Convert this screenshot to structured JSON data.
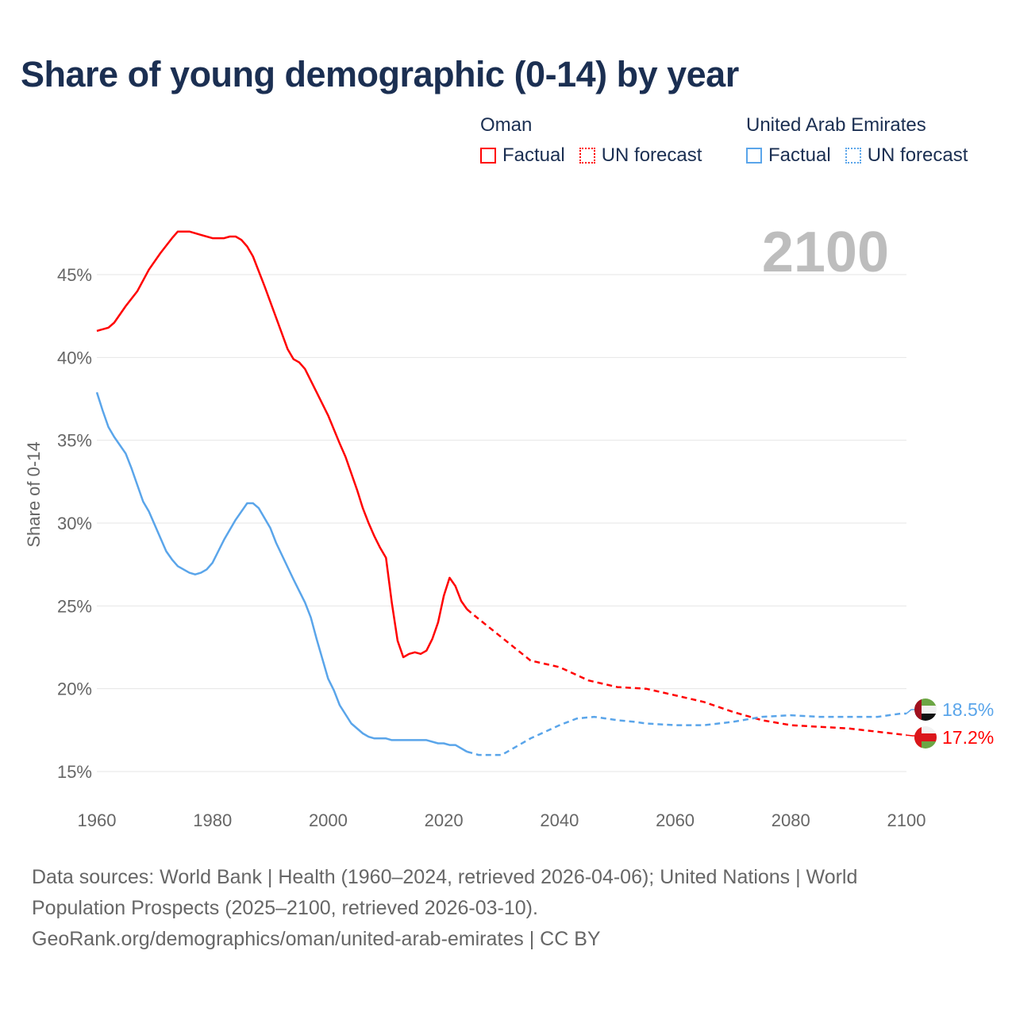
{
  "colors": {
    "oman": "#ff0000",
    "uae": "#5aa5ea",
    "grid": "#e6e6e6",
    "text": "#666666",
    "year": "#bdbdbd"
  },
  "legend": {
    "groups": [
      {
        "country": "Oman",
        "factual": "Factual",
        "forecast": "UN forecast"
      },
      {
        "country": "United Arab Emirates",
        "factual": "Factual",
        "forecast": "UN forecast"
      }
    ]
  },
  "footer": {
    "sources": "Data sources: World Bank | Health (1960–2024, retrieved 2026-04-06); United Nations | World Population Prospects (2025–2100, retrieved 2026-03-10).",
    "link": "GeoRank.org/demographics/oman/united-arab-emirates | CC BY"
  },
  "chart_data": {
    "type": "line",
    "title": "Share of young demographic (0-14) by year",
    "xlabel": "",
    "ylabel": "Share of 0-14",
    "xlim": [
      1960,
      2100
    ],
    "ylim": [
      13.5,
      48
    ],
    "xticks": [
      1960,
      1980,
      2000,
      2020,
      2040,
      2060,
      2080,
      2100
    ],
    "yticks": [
      15,
      20,
      25,
      30,
      35,
      40,
      45
    ],
    "ytick_labels": [
      "15%",
      "20%",
      "25%",
      "30%",
      "35%",
      "40%",
      "45%"
    ],
    "current_year_label": "2100",
    "factual_end": 2024,
    "grid": true,
    "legend_position": "top-right",
    "series": [
      {
        "name": "Oman",
        "end_label": "17.2%",
        "x": [
          1960,
          1962,
          1963,
          1965,
          1967,
          1969,
          1971,
          1973,
          1974,
          1976,
          1978,
          1980,
          1982,
          1983,
          1984,
          1985,
          1986,
          1987,
          1989,
          1991,
          1993,
          1994,
          1995,
          1996,
          1998,
          2000,
          2002,
          2003,
          2005,
          2006,
          2007,
          2008,
          2009,
          2010,
          2011,
          2012,
          2013,
          2014,
          2015,
          2016,
          2017,
          2018,
          2019,
          2020,
          2021,
          2022,
          2023,
          2024,
          2025,
          2030,
          2035,
          2040,
          2045,
          2050,
          2055,
          2060,
          2065,
          2070,
          2075,
          2080,
          2085,
          2090,
          2095,
          2100
        ],
        "y": [
          41.6,
          41.8,
          42.1,
          43.1,
          44.0,
          45.3,
          46.3,
          47.2,
          47.6,
          47.6,
          47.4,
          47.2,
          47.2,
          47.3,
          47.3,
          47.1,
          46.7,
          46.1,
          44.3,
          42.4,
          40.5,
          39.9,
          39.7,
          39.3,
          37.9,
          36.5,
          34.8,
          34.0,
          32.0,
          30.9,
          30.0,
          29.2,
          28.5,
          27.9,
          25.2,
          22.9,
          21.9,
          22.1,
          22.2,
          22.1,
          22.3,
          23.0,
          24.0,
          25.6,
          26.7,
          26.2,
          25.3,
          24.8,
          24.5,
          23.1,
          21.7,
          21.3,
          20.5,
          20.1,
          20.0,
          19.6,
          19.2,
          18.6,
          18.1,
          17.8,
          17.7,
          17.6,
          17.4,
          17.2
        ]
      },
      {
        "name": "United Arab Emirates",
        "end_label": "18.5%",
        "x": [
          1960,
          1961,
          1962,
          1963,
          1965,
          1966,
          1967,
          1968,
          1969,
          1971,
          1972,
          1973,
          1974,
          1976,
          1977,
          1978,
          1979,
          1980,
          1981,
          1982,
          1984,
          1986,
          1987,
          1988,
          1990,
          1991,
          1994,
          1995,
          1996,
          1997,
          1998,
          2000,
          2001,
          2002,
          2004,
          2006,
          2007,
          2008,
          2010,
          2011,
          2017,
          2019,
          2020,
          2021,
          2022,
          2024,
          2025,
          2026,
          2030,
          2035,
          2040,
          2043,
          2046,
          2050,
          2053,
          2055,
          2060,
          2065,
          2070,
          2075,
          2080,
          2085,
          2090,
          2095,
          2099,
          2100
        ],
        "y": [
          37.9,
          36.8,
          35.8,
          35.2,
          34.2,
          33.3,
          32.3,
          31.3,
          30.7,
          29.1,
          28.3,
          27.8,
          27.4,
          27.0,
          26.9,
          27.0,
          27.2,
          27.6,
          28.3,
          29.0,
          30.2,
          31.2,
          31.2,
          30.9,
          29.7,
          28.8,
          26.6,
          25.9,
          25.2,
          24.3,
          23.0,
          20.6,
          19.9,
          19.0,
          17.9,
          17.3,
          17.1,
          17.0,
          17.0,
          16.9,
          16.9,
          16.7,
          16.7,
          16.6,
          16.6,
          16.2,
          16.1,
          16.0,
          16.0,
          17.0,
          17.8,
          18.2,
          18.3,
          18.1,
          18.0,
          17.9,
          17.8,
          17.8,
          18.0,
          18.3,
          18.4,
          18.3,
          18.3,
          18.3,
          18.5,
          18.5
        ]
      }
    ]
  }
}
